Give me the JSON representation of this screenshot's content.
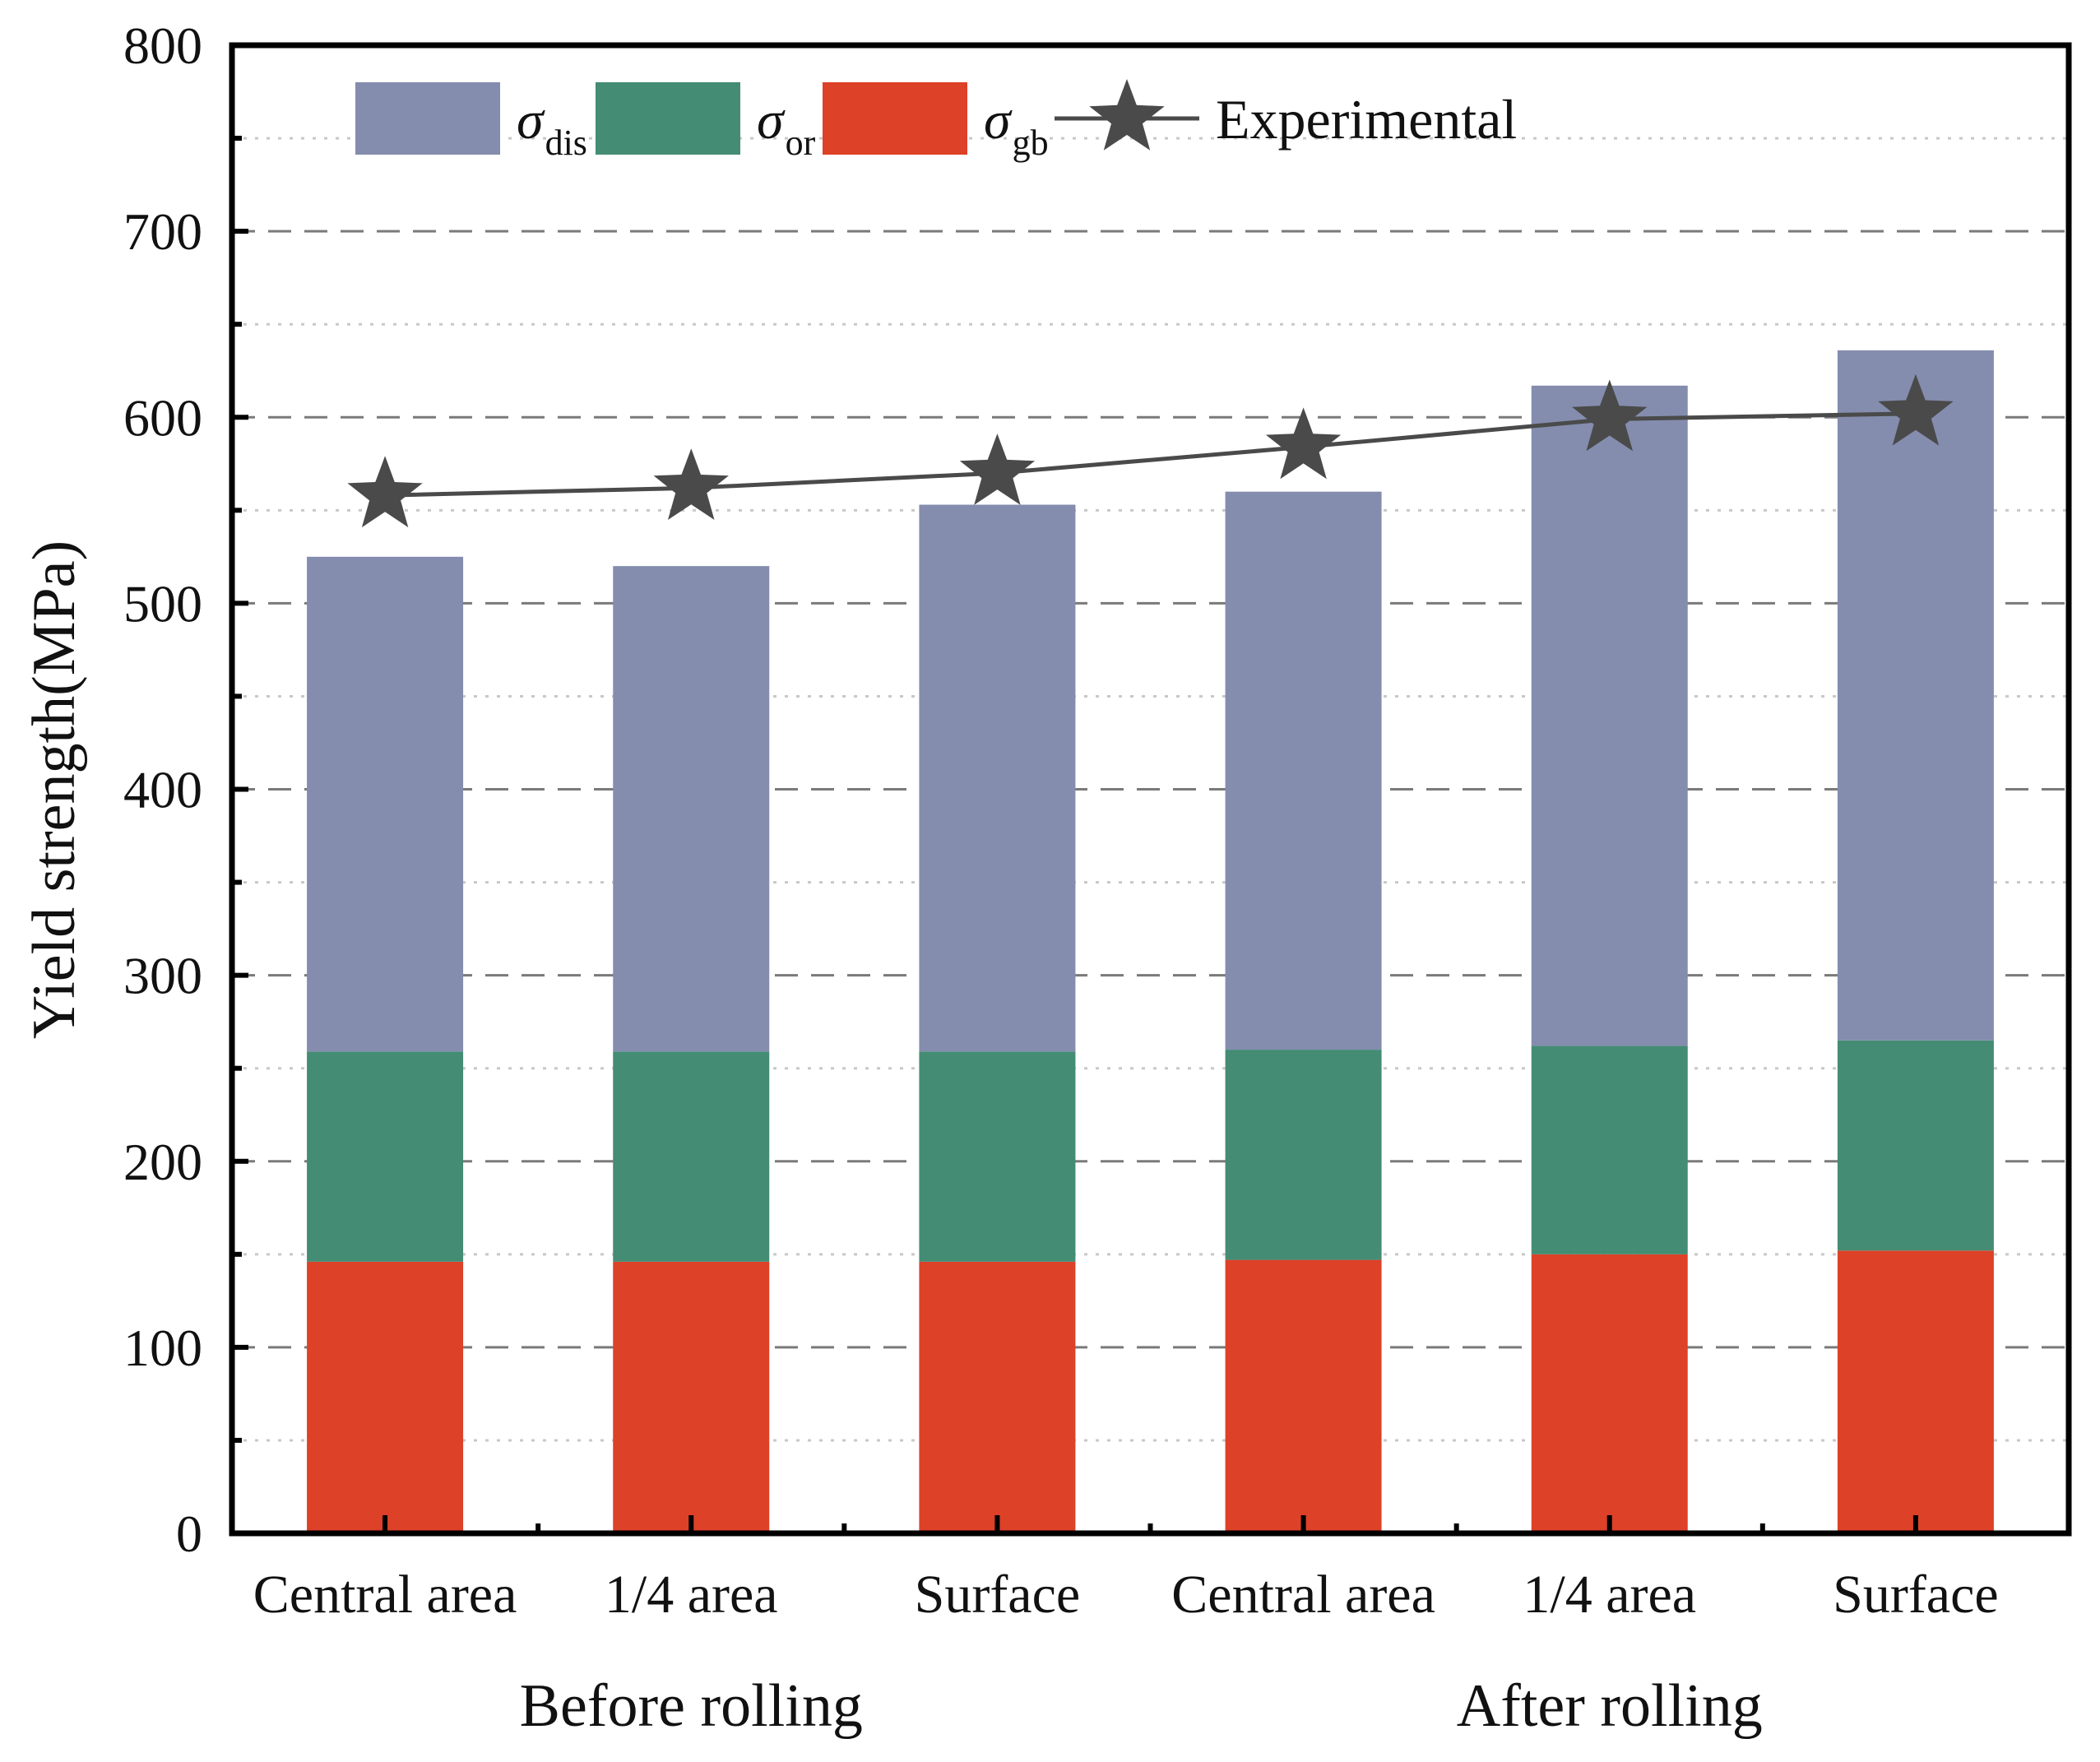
{
  "chart_data": {
    "type": "bar",
    "stacked": true,
    "categories": [
      "Central area",
      "1/4 area",
      "Surface",
      "Central area",
      "1/4 area",
      "Surface"
    ],
    "groups": [
      {
        "label": "Before rolling",
        "from": 0,
        "to": 2
      },
      {
        "label": "After rolling",
        "from": 3,
        "to": 5
      }
    ],
    "series": [
      {
        "key": "gb",
        "symbol": "σ",
        "sub": "gb",
        "color": "#DD4128",
        "values": [
          146,
          146,
          146,
          147,
          150,
          152
        ]
      },
      {
        "key": "or",
        "symbol": "σ",
        "sub": "or",
        "color": "#448C74",
        "values": [
          113,
          113,
          113,
          113,
          112,
          113
        ]
      },
      {
        "key": "dis",
        "symbol": "σ",
        "sub": "dis",
        "color": "#848DAE",
        "values": [
          266,
          261,
          294,
          300,
          355,
          371
        ]
      }
    ],
    "line": {
      "name": "Experimental",
      "color": "#4A4A4A",
      "values": [
        558,
        562,
        570,
        584,
        599,
        602
      ]
    },
    "ylabel": "Yield strength(MPa)",
    "xlabel": "",
    "ylim": [
      0,
      800
    ],
    "yticks": [
      0,
      100,
      200,
      300,
      400,
      500,
      600,
      700,
      800
    ],
    "grid": "horizontal dashed",
    "legend_position": "top-left",
    "legend_order": [
      "dis",
      "or",
      "gb",
      "line"
    ]
  }
}
